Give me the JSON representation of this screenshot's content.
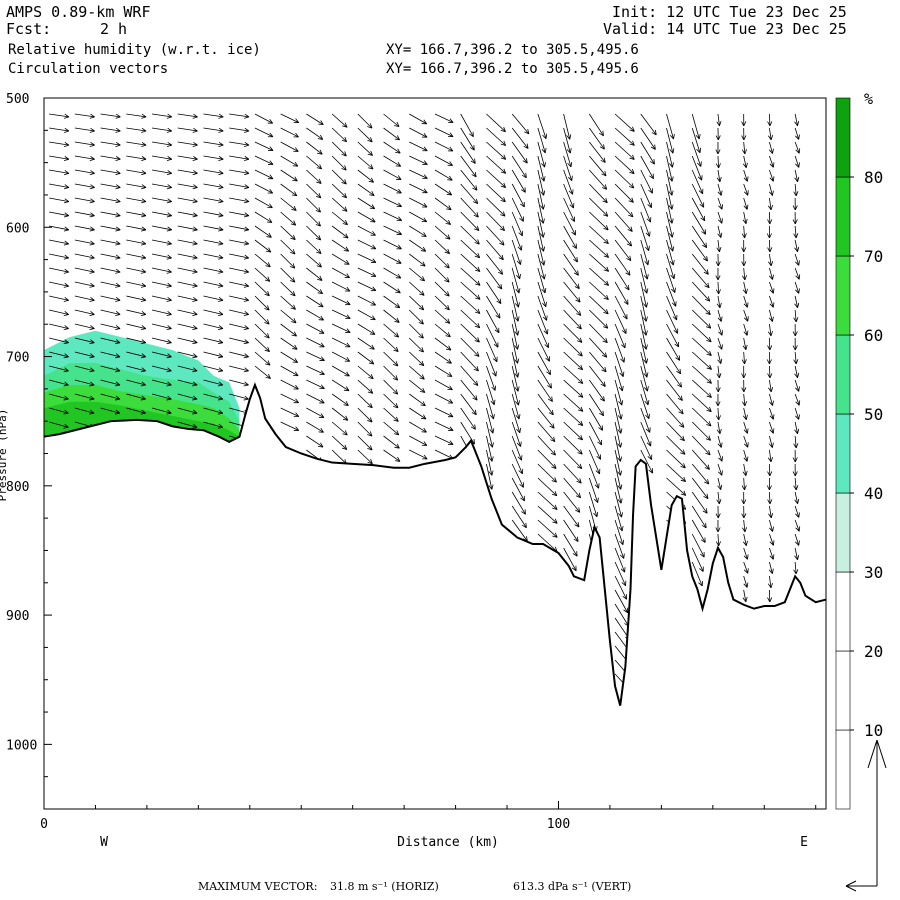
{
  "header": {
    "model": "AMPS 0.89-km WRF",
    "forecast_label": "Fcst:",
    "forecast_value": "2 h",
    "init": "Init: 12 UTC Tue 23 Dec 25",
    "valid": "Valid: 14 UTC Tue 23 Dec 25",
    "field1": "Relative humidity (w.r.t. ice)",
    "field2": "Circulation vectors",
    "xy1": "XY= 166.7,396.2 to 305.5,495.6",
    "xy2": "XY= 166.7,396.2 to 305.5,495.6"
  },
  "footer": {
    "max_vector_label": "MAXIMUM VECTOR:",
    "horiz": "31.8 m s⁻¹ (HORIZ)",
    "vert": "613.3 dPa s⁻¹ (VERT)"
  },
  "chart_data": {
    "type": "heatmap",
    "xlabel": "Distance (km)",
    "ylabel": "Pressure (hPa)",
    "xlim": [
      0,
      152
    ],
    "ylim": [
      1050,
      500
    ],
    "y_inverted": true,
    "x_ticks": [
      0,
      100
    ],
    "x_tick_labels": [
      "0",
      "100"
    ],
    "y_ticks": [
      500,
      600,
      700,
      800,
      900,
      1000
    ],
    "y_tick_labels": [
      "500",
      "600",
      "700",
      "800",
      "900",
      "1000"
    ],
    "direction_labels": {
      "west": "W",
      "east": "E"
    },
    "colorbar": {
      "unit": "%",
      "levels": [
        10,
        20,
        30,
        40,
        50,
        60,
        70,
        80
      ],
      "colors": [
        "#ffffff",
        "#ffffff",
        "#ffffff",
        "#c8f0e0",
        "#5ee8c0",
        "#44e38c",
        "#3cdc3c",
        "#22c622",
        "#0ea30e"
      ]
    },
    "terrain_pressure": [
      [
        0,
        762
      ],
      [
        3,
        760
      ],
      [
        8,
        755
      ],
      [
        13,
        750
      ],
      [
        18,
        749
      ],
      [
        22,
        750
      ],
      [
        25,
        754
      ],
      [
        28,
        756
      ],
      [
        31,
        757
      ],
      [
        34,
        762
      ],
      [
        36,
        766
      ],
      [
        38,
        762
      ],
      [
        39,
        747
      ],
      [
        40,
        733
      ],
      [
        41,
        722
      ],
      [
        42,
        732
      ],
      [
        43,
        748
      ],
      [
        45,
        760
      ],
      [
        47,
        770
      ],
      [
        50,
        775
      ],
      [
        53,
        779
      ],
      [
        56,
        782
      ],
      [
        60,
        783
      ],
      [
        64,
        784
      ],
      [
        68,
        786
      ],
      [
        71,
        786
      ],
      [
        74,
        783
      ],
      [
        78,
        780
      ],
      [
        80,
        778
      ],
      [
        82,
        770
      ],
      [
        83,
        765
      ],
      [
        85,
        785
      ],
      [
        87,
        810
      ],
      [
        89,
        830
      ],
      [
        92,
        840
      ],
      [
        95,
        845
      ],
      [
        97,
        845
      ],
      [
        100,
        852
      ],
      [
        102,
        862
      ],
      [
        103,
        870
      ],
      [
        105,
        873
      ],
      [
        106,
        850
      ],
      [
        107,
        832
      ],
      [
        108,
        840
      ],
      [
        109,
        880
      ],
      [
        110,
        920
      ],
      [
        111,
        955
      ],
      [
        112,
        970
      ],
      [
        113,
        940
      ],
      [
        114,
        880
      ],
      [
        114.5,
        822
      ],
      [
        115,
        785
      ],
      [
        116,
        780
      ],
      [
        117,
        783
      ],
      [
        118,
        815
      ],
      [
        119,
        840
      ],
      [
        120,
        865
      ],
      [
        121,
        840
      ],
      [
        122,
        815
      ],
      [
        123,
        808
      ],
      [
        124,
        810
      ],
      [
        125,
        850
      ],
      [
        126,
        870
      ],
      [
        127,
        880
      ],
      [
        128,
        895
      ],
      [
        129,
        880
      ],
      [
        130,
        860
      ],
      [
        131,
        848
      ],
      [
        132,
        855
      ],
      [
        133,
        875
      ],
      [
        134,
        888
      ],
      [
        136,
        892
      ],
      [
        138,
        895
      ],
      [
        140,
        893
      ],
      [
        142,
        893
      ],
      [
        144,
        890
      ],
      [
        145,
        880
      ],
      [
        146,
        870
      ],
      [
        147,
        875
      ],
      [
        148,
        885
      ],
      [
        150,
        890
      ],
      [
        152,
        888
      ]
    ],
    "humidity_bands": [
      {
        "level": 40,
        "top": [
          [
            0,
            695
          ],
          [
            5,
            685
          ],
          [
            10,
            680
          ],
          [
            15,
            685
          ],
          [
            20,
            690
          ],
          [
            25,
            695
          ],
          [
            28,
            700
          ],
          [
            30,
            703
          ],
          [
            33,
            715
          ],
          [
            36,
            720
          ],
          [
            38,
            740
          ]
        ]
      },
      {
        "level": 50,
        "top": [
          [
            0,
            715
          ],
          [
            5,
            705
          ],
          [
            10,
            705
          ],
          [
            15,
            710
          ],
          [
            20,
            715
          ],
          [
            25,
            718
          ],
          [
            30,
            720
          ],
          [
            33,
            728
          ],
          [
            36,
            735
          ],
          [
            38,
            750
          ]
        ]
      },
      {
        "level": 60,
        "top": [
          [
            0,
            728
          ],
          [
            5,
            722
          ],
          [
            10,
            722
          ],
          [
            15,
            727
          ],
          [
            20,
            730
          ],
          [
            25,
            733
          ],
          [
            30,
            737
          ],
          [
            33,
            740
          ],
          [
            36,
            748
          ],
          [
            38,
            757
          ]
        ]
      },
      {
        "level": 70,
        "top": [
          [
            0,
            740
          ],
          [
            5,
            735
          ],
          [
            10,
            735
          ],
          [
            15,
            738
          ],
          [
            20,
            742
          ],
          [
            25,
            746
          ],
          [
            30,
            750
          ],
          [
            33,
            752
          ],
          [
            36,
            757
          ],
          [
            38,
            762
          ]
        ]
      }
    ],
    "vector_max": {
      "horizontal_m_s": 31.8,
      "vertical_dPa_s": 613.3
    }
  }
}
